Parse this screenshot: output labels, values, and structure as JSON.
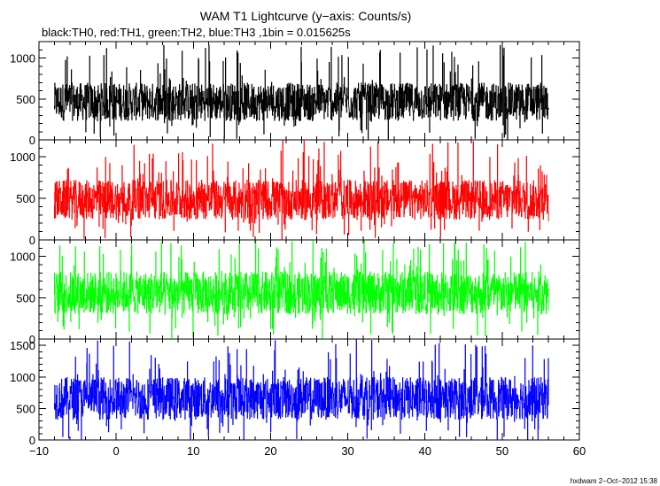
{
  "title": "WAM T1 Lightcurve (y−axis: Counts/s)",
  "subtitle": "black:TH0, red:TH1, green:TH2, blue:TH3 ,1bin = 0.015625s",
  "footer": "hxdwam  2−Oct−2012 15:38",
  "chart_data": [
    {
      "type": "line",
      "series": [
        {
          "name": "TH0",
          "color": "#000000",
          "x_start": -8,
          "x_end": 56,
          "baseline": 420,
          "noise_low": 0,
          "noise_high": 1200,
          "typical_low": 230,
          "typical_high": 700
        }
      ],
      "xlim": [
        -10,
        60
      ],
      "ylim": [
        0,
        1200
      ],
      "yticks": [
        0,
        500,
        1000
      ],
      "ytick_labels": [
        "0",
        "500",
        "1000"
      ]
    },
    {
      "type": "line",
      "series": [
        {
          "name": "TH1",
          "color": "#ff0000",
          "x_start": -8,
          "x_end": 56,
          "baseline": 420,
          "noise_low": 0,
          "noise_high": 1200,
          "typical_low": 240,
          "typical_high": 720
        }
      ],
      "xlim": [
        -10,
        60
      ],
      "ylim": [
        0,
        1200
      ],
      "yticks": [
        0,
        500,
        1000
      ],
      "ytick_labels": [
        "0",
        "500",
        "1000"
      ]
    },
    {
      "type": "line",
      "series": [
        {
          "name": "TH2",
          "color": "#00ff00",
          "x_start": -8,
          "x_end": 56,
          "baseline": 540,
          "noise_low": 0,
          "noise_high": 1200,
          "typical_low": 300,
          "typical_high": 820
        }
      ],
      "xlim": [
        -10,
        60
      ],
      "ylim": [
        0,
        1200
      ],
      "yticks": [
        0,
        500,
        1000
      ],
      "ytick_labels": [
        "0",
        "500",
        "1000"
      ]
    },
    {
      "type": "line",
      "series": [
        {
          "name": "TH3",
          "color": "#0000ff",
          "x_start": -8,
          "x_end": 56,
          "baseline": 580,
          "noise_low": 0,
          "noise_high": 1600,
          "typical_low": 320,
          "typical_high": 1000
        }
      ],
      "xlim": [
        -10,
        60
      ],
      "ylim": [
        0,
        1600
      ],
      "yticks": [
        0,
        500,
        1000,
        1500
      ],
      "ytick_labels": [
        "0",
        "500",
        "1000",
        "1500"
      ]
    }
  ],
  "xaxis": {
    "ticks": [
      -10,
      0,
      10,
      20,
      30,
      40,
      50,
      60
    ],
    "tick_labels": [
      "−10",
      "0",
      "10",
      "20",
      "30",
      "40",
      "50",
      "60"
    ]
  }
}
